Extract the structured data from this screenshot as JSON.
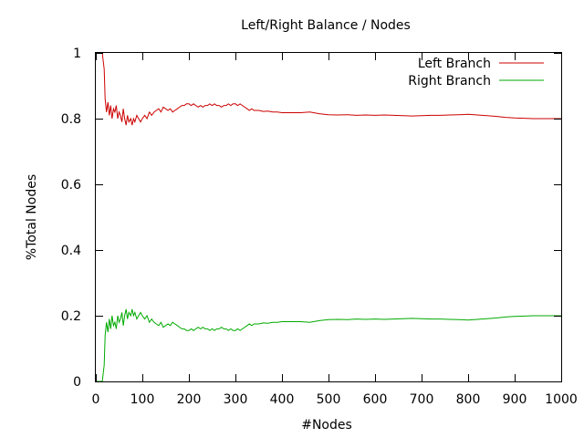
{
  "chart_data": {
    "type": "line",
    "title": "Left/Right Balance / Nodes",
    "xlabel": "#Nodes",
    "ylabel": "%Total Nodes",
    "xlim": [
      0,
      1000
    ],
    "ylim": [
      0,
      1
    ],
    "xticks": [
      0,
      100,
      200,
      300,
      400,
      500,
      600,
      700,
      800,
      900,
      1000
    ],
    "yticks": [
      0,
      0.2,
      0.4,
      0.6,
      0.8,
      1
    ],
    "ytick_labels": [
      "0",
      "0.2",
      "0.4",
      "0.6",
      "0.8",
      "1"
    ],
    "grid": false,
    "legend_position": "top-right",
    "series": [
      {
        "name": "Left Branch",
        "color": "#cc0000",
        "x": [
          2,
          10,
          14,
          18,
          20,
          23,
          26,
          29,
          32,
          35,
          38,
          41,
          44,
          47,
          50,
          53,
          56,
          59,
          62,
          65,
          68,
          71,
          75,
          78,
          81,
          84,
          88,
          92,
          96,
          100,
          105,
          110,
          115,
          120,
          125,
          130,
          135,
          140,
          145,
          150,
          155,
          160,
          165,
          170,
          175,
          180,
          185,
          190,
          195,
          200,
          205,
          210,
          215,
          220,
          225,
          230,
          235,
          240,
          245,
          250,
          255,
          260,
          265,
          270,
          275,
          280,
          285,
          290,
          295,
          300,
          305,
          310,
          315,
          320,
          325,
          330,
          335,
          340,
          350,
          360,
          370,
          380,
          390,
          400,
          420,
          440,
          460,
          480,
          500,
          520,
          540,
          560,
          580,
          600,
          620,
          640,
          660,
          680,
          700,
          720,
          740,
          760,
          780,
          800,
          820,
          840,
          860,
          880,
          900,
          920,
          940,
          960,
          980,
          1000
        ],
        "y": [
          1.0,
          1.0,
          1.0,
          0.95,
          0.86,
          0.82,
          0.85,
          0.81,
          0.84,
          0.8,
          0.83,
          0.82,
          0.84,
          0.8,
          0.82,
          0.81,
          0.79,
          0.83,
          0.8,
          0.78,
          0.81,
          0.79,
          0.8,
          0.78,
          0.8,
          0.79,
          0.81,
          0.8,
          0.79,
          0.8,
          0.81,
          0.8,
          0.82,
          0.81,
          0.82,
          0.825,
          0.83,
          0.82,
          0.835,
          0.83,
          0.825,
          0.83,
          0.82,
          0.825,
          0.83,
          0.835,
          0.84,
          0.84,
          0.845,
          0.845,
          0.84,
          0.845,
          0.84,
          0.835,
          0.84,
          0.835,
          0.84,
          0.84,
          0.845,
          0.84,
          0.845,
          0.84,
          0.84,
          0.835,
          0.84,
          0.84,
          0.845,
          0.84,
          0.845,
          0.845,
          0.84,
          0.845,
          0.84,
          0.835,
          0.83,
          0.825,
          0.83,
          0.825,
          0.825,
          0.822,
          0.823,
          0.82,
          0.82,
          0.818,
          0.818,
          0.818,
          0.82,
          0.815,
          0.812,
          0.811,
          0.812,
          0.81,
          0.811,
          0.81,
          0.811,
          0.81,
          0.809,
          0.808,
          0.809,
          0.81,
          0.81,
          0.811,
          0.812,
          0.813,
          0.811,
          0.809,
          0.807,
          0.804,
          0.802,
          0.801,
          0.8,
          0.8,
          0.8,
          0.8
        ]
      },
      {
        "name": "Right Branch",
        "color": "#00aa00",
        "x": [
          2,
          10,
          14,
          18,
          20,
          23,
          26,
          29,
          32,
          35,
          38,
          41,
          44,
          47,
          50,
          53,
          56,
          59,
          62,
          65,
          68,
          71,
          75,
          78,
          81,
          84,
          88,
          92,
          96,
          100,
          105,
          110,
          115,
          120,
          125,
          130,
          135,
          140,
          145,
          150,
          155,
          160,
          165,
          170,
          175,
          180,
          185,
          190,
          195,
          200,
          205,
          210,
          215,
          220,
          225,
          230,
          235,
          240,
          245,
          250,
          255,
          260,
          265,
          270,
          275,
          280,
          285,
          290,
          295,
          300,
          305,
          310,
          315,
          320,
          325,
          330,
          335,
          340,
          350,
          360,
          370,
          380,
          390,
          400,
          420,
          440,
          460,
          480,
          500,
          520,
          540,
          560,
          580,
          600,
          620,
          640,
          660,
          680,
          700,
          720,
          740,
          760,
          780,
          800,
          820,
          840,
          860,
          880,
          900,
          920,
          940,
          960,
          980,
          1000
        ],
        "y": [
          0.0,
          0.0,
          0.0,
          0.05,
          0.14,
          0.18,
          0.15,
          0.19,
          0.16,
          0.2,
          0.17,
          0.18,
          0.16,
          0.2,
          0.18,
          0.19,
          0.21,
          0.17,
          0.2,
          0.22,
          0.19,
          0.21,
          0.2,
          0.22,
          0.2,
          0.21,
          0.19,
          0.2,
          0.21,
          0.2,
          0.19,
          0.2,
          0.18,
          0.19,
          0.18,
          0.175,
          0.17,
          0.18,
          0.165,
          0.17,
          0.175,
          0.17,
          0.18,
          0.175,
          0.17,
          0.165,
          0.16,
          0.16,
          0.155,
          0.155,
          0.16,
          0.155,
          0.16,
          0.165,
          0.16,
          0.165,
          0.16,
          0.16,
          0.155,
          0.16,
          0.155,
          0.16,
          0.16,
          0.165,
          0.16,
          0.16,
          0.155,
          0.16,
          0.155,
          0.155,
          0.16,
          0.155,
          0.16,
          0.165,
          0.17,
          0.175,
          0.17,
          0.175,
          0.175,
          0.178,
          0.177,
          0.18,
          0.18,
          0.182,
          0.182,
          0.182,
          0.18,
          0.185,
          0.188,
          0.189,
          0.188,
          0.19,
          0.189,
          0.19,
          0.189,
          0.19,
          0.191,
          0.192,
          0.191,
          0.19,
          0.19,
          0.189,
          0.188,
          0.187,
          0.189,
          0.191,
          0.193,
          0.196,
          0.198,
          0.199,
          0.2,
          0.2,
          0.2,
          0.2
        ]
      }
    ]
  }
}
